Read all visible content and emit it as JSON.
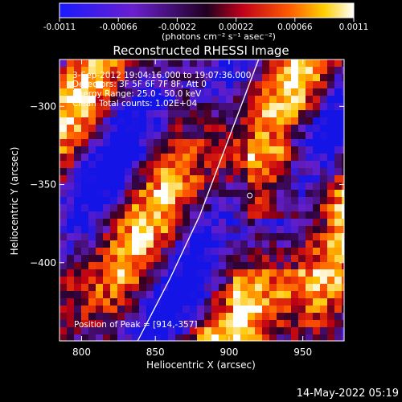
{
  "timestamp": "14-May-2022 05:19",
  "colorbar": {
    "ticks": [
      "-0.0011",
      "-0.00066",
      "-0.00022",
      "0.00022",
      "0.00066",
      "0.0011"
    ],
    "units": "(photons cm⁻² s⁻¹ asec⁻²)",
    "range": [
      -0.0011,
      0.0011
    ]
  },
  "chart_data": {
    "type": "heatmap",
    "title": "Reconstructed RHESSI Image",
    "xlabel": "Heliocentric X (arcsec)",
    "ylabel": "Heliocentric Y (arcsec)",
    "xlim": [
      785,
      978
    ],
    "ylim": [
      -450,
      -270
    ],
    "xticks": [
      800,
      850,
      900,
      950
    ],
    "yticks": [
      -300,
      -350,
      -400
    ],
    "xtick_labels": [
      "800",
      "850",
      "900",
      "950"
    ],
    "ytick_labels": [
      "−300",
      "−350",
      "−400"
    ],
    "annotations": [
      "3-Sep-2012 19:04:16.000 to 19:07:36.000",
      "Detectors: 3F 5F 6F 7F 8F, Att 0",
      "Energy Range: 25.0 - 50.0 keV",
      "Clean    Total counts: 1.02E+04"
    ],
    "peak_label": "Position of Peak = [914,-357]",
    "peak": [
      914,
      -357
    ],
    "limb_curve": [
      [
        838,
        -450
      ],
      [
        860,
        -410
      ],
      [
        880,
        -370
      ],
      [
        896,
        -330
      ],
      [
        910,
        -295
      ],
      [
        920,
        -270
      ]
    ],
    "colormap": "blue-purple-red-orange-yellow-white",
    "grid": false
  }
}
